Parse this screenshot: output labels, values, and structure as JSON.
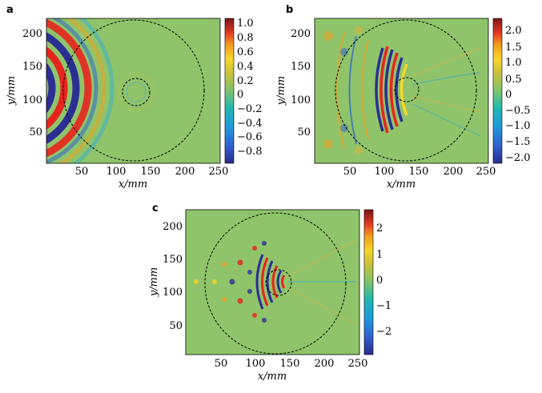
{
  "figure": {
    "panels": [
      {
        "letter": "a",
        "xlabel": "x/mm",
        "ylabel": "y/mm",
        "xticks": [
          "50",
          "100",
          "150",
          "200",
          "250"
        ],
        "yticks": [
          "50",
          "100",
          "150",
          "200"
        ],
        "colorbar": [
          "1.0",
          "0.8",
          "0.6",
          "0.4",
          "0.2",
          "0",
          "−0.2",
          "−0.4",
          "−0.6",
          "−0.8"
        ]
      },
      {
        "letter": "b",
        "xlabel": "x/mm",
        "ylabel": "y/mm",
        "xticks": [
          "50",
          "100",
          "150",
          "200",
          "250"
        ],
        "yticks": [
          "50",
          "100",
          "150",
          "200"
        ],
        "colorbar": [
          "2.0",
          "1.5",
          "1.0",
          "0.5",
          "0",
          "−0.5",
          "−1.0",
          "−1.5",
          "−2.0"
        ]
      },
      {
        "letter": "c",
        "xlabel": "x/mm",
        "ylabel": "y/mm",
        "xticks": [
          "50",
          "100",
          "150",
          "200",
          "250"
        ],
        "yticks": [
          "50",
          "100",
          "150",
          "200"
        ],
        "colorbar": [
          "2",
          "1",
          "0",
          "−1",
          "−2"
        ]
      }
    ]
  },
  "chart_data": [
    {
      "type": "heatmap",
      "title": "",
      "xlabel": "x/mm",
      "ylabel": "y/mm",
      "xlim": [
        0,
        250
      ],
      "ylim": [
        0,
        225
      ],
      "clim": [
        -0.9,
        1.05
      ],
      "colormap": "parula",
      "circles": [
        {
          "cx": 130,
          "cy": 112,
          "r": 100
        },
        {
          "cx": 130,
          "cy": 112,
          "r": 20
        }
      ]
    },
    {
      "type": "heatmap",
      "title": "",
      "xlabel": "x/mm",
      "ylabel": "y/mm",
      "xlim": [
        0,
        250
      ],
      "ylim": [
        0,
        225
      ],
      "clim": [
        -2.1,
        2.4
      ],
      "colormap": "parula",
      "circles": [
        {
          "cx": 130,
          "cy": 112,
          "r": 100
        },
        {
          "cx": 130,
          "cy": 112,
          "r": 20
        }
      ]
    },
    {
      "type": "heatmap",
      "title": "",
      "xlabel": "x/mm",
      "ylabel": "y/mm",
      "xlim": [
        0,
        250
      ],
      "ylim": [
        0,
        225
      ],
      "clim": [
        -2.7,
        2.7
      ],
      "colormap": "parula",
      "circles": [
        {
          "cx": 130,
          "cy": 112,
          "r": 100
        },
        {
          "cx": 130,
          "cy": 112,
          "r": 20
        }
      ]
    }
  ]
}
